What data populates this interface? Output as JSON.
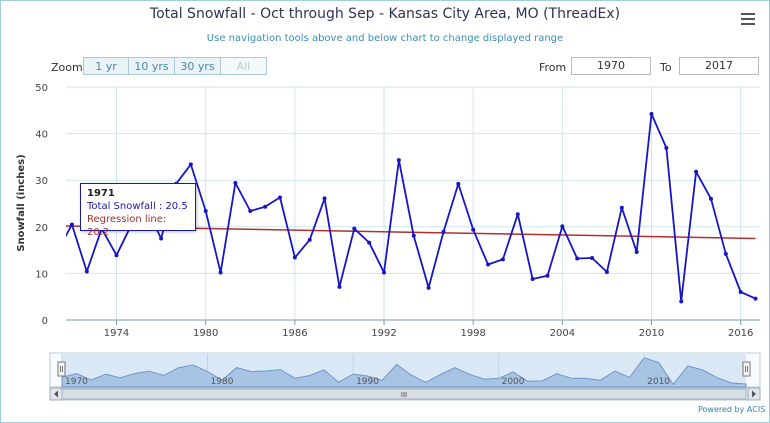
{
  "header": {
    "title": "Total Snowfall - Oct through Sep - Kansas City Area, MO (ThreadEx)",
    "subtitle": "Use navigation tools above and below chart to change displayed range"
  },
  "toolbar": {
    "zoom_label": "Zoom",
    "zoom_buttons": [
      "1 yr",
      "10 yrs",
      "30 yrs",
      "All"
    ],
    "from_label": "From",
    "from_value": "1970",
    "to_label": "To",
    "to_value": "2017",
    "menu_icon": "hamburger-menu-icon"
  },
  "tooltip": {
    "year": "1971",
    "total": "Total Snowfall : 20.5",
    "regression": "Regression line: 20.2"
  },
  "credits": "Powered by ACIS",
  "navigator": {
    "labels": [
      "1970",
      "1980",
      "1990",
      "2000",
      "2010"
    ],
    "scrollbar_grip": "III"
  },
  "chart_data": {
    "type": "line",
    "title": "Total Snowfall - Oct through Sep - Kansas City Area, MO (ThreadEx)",
    "ylabel": "Snowfall (inches)",
    "xlabel": "",
    "xlim": [
      1970.6,
      2017.3
    ],
    "ylim": [
      0,
      50
    ],
    "yticks": [
      0,
      10,
      20,
      30,
      40,
      50
    ],
    "xticks": [
      1974,
      1980,
      1986,
      1992,
      1998,
      2004,
      2010,
      2016
    ],
    "grid": true,
    "colors": {
      "series": "#1616c8",
      "regression": "#b03030",
      "grid": "#cfe6ee",
      "navigator": "#7aa8cf"
    },
    "series": [
      {
        "name": "Total Snowfall",
        "x": [
          1970,
          1971,
          1972,
          1973,
          1974,
          1975,
          1976,
          1977,
          1978,
          1979,
          1980,
          1981,
          1982,
          1983,
          1984,
          1985,
          1986,
          1987,
          1988,
          1989,
          1990,
          1991,
          1992,
          1993,
          1994,
          1995,
          1996,
          1997,
          1998,
          1999,
          2000,
          2001,
          2002,
          2003,
          2004,
          2005,
          2006,
          2007,
          2008,
          2009,
          2010,
          2011,
          2012,
          2013,
          2014,
          2015,
          2016,
          2017
        ],
        "values": [
          14.6,
          20.5,
          10.4,
          19.6,
          13.9,
          20.4,
          24.0,
          17.5,
          29.2,
          33.4,
          23.4,
          10.2,
          29.4,
          23.4,
          24.3,
          26.3,
          13.4,
          17.2,
          26.1,
          7.1,
          19.6,
          16.6,
          10.2,
          34.3,
          18.1,
          6.9,
          18.9,
          29.2,
          19.4,
          11.9,
          13.0,
          22.7,
          8.8,
          9.5,
          20.1,
          13.2,
          13.3,
          10.3,
          24.1,
          14.6,
          44.2,
          36.9,
          4.0,
          31.8,
          26.0,
          14.2,
          6.0,
          4.6
        ]
      },
      {
        "name": "Regression line",
        "x": [
          1970,
          2017
        ],
        "values": [
          20.2,
          17.5
        ]
      }
    ]
  }
}
